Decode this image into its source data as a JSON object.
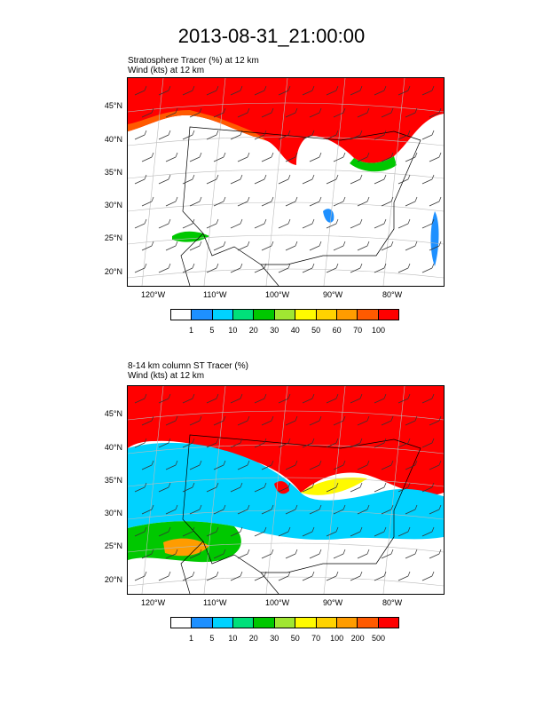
{
  "page_title": "2013-08-31_21:00:00",
  "colors": {
    "palette": [
      "#ffffff",
      "#1e90ff",
      "#00d2ff",
      "#00e07a",
      "#00c800",
      "#a0e632",
      "#fffa00",
      "#ffd200",
      "#ff9c00",
      "#ff5a00",
      "#ff0000"
    ]
  },
  "chart_data": [
    {
      "type": "heatmap",
      "title": "Stratosphere Tracer   (%)     at   12 km",
      "subtitle": "Wind   (kts)     at   12 km",
      "x_tick_labels": [
        "120°W",
        "110°W",
        "100°W",
        "90°W",
        "80°W"
      ],
      "y_tick_labels": [
        "45°N",
        "40°N",
        "35°N",
        "30°N",
        "25°N",
        "20°N"
      ],
      "colorbar_levels": [
        "1",
        "5",
        "10",
        "20",
        "30",
        "40",
        "50",
        "60",
        "70",
        "100"
      ],
      "colorbar_colors": [
        "#ffffff",
        "#1e90ff",
        "#00d2ff",
        "#00e07a",
        "#00c800",
        "#a0e632",
        "#fffa00",
        "#ffd200",
        "#ff9c00",
        "#ff5a00",
        "#ff0000"
      ],
      "regions": [
        {
          "name": "northern high-tracer band",
          "level": ">100",
          "lat_range": [
            40,
            48
          ]
        },
        {
          "name": "southwest patch",
          "level": "5-30",
          "lat_range": [
            24,
            27
          ]
        }
      ],
      "grid": true
    },
    {
      "type": "heatmap",
      "title": "8-14 km column ST Tracer    (%)",
      "subtitle": "Wind   (kts)     at   12 km",
      "x_tick_labels": [
        "120°W",
        "110°W",
        "100°W",
        "90°W",
        "80°W"
      ],
      "y_tick_labels": [
        "45°N",
        "40°N",
        "35°N",
        "30°N",
        "25°N",
        "20°N"
      ],
      "colorbar_levels": [
        "1",
        "5",
        "10",
        "20",
        "30",
        "50",
        "70",
        "100",
        "200",
        "500"
      ],
      "colorbar_colors": [
        "#ffffff",
        "#1e90ff",
        "#00d2ff",
        "#00e07a",
        "#00c800",
        "#a0e632",
        "#fffa00",
        "#ffd200",
        "#ff9c00",
        "#ff5a00",
        "#ff0000"
      ],
      "regions": [
        {
          "name": "northern high-tracer band",
          "level": ">500",
          "lat_range": [
            40,
            48
          ]
        },
        {
          "name": "widespread low-tracer field",
          "level": "1-50",
          "lat_range": [
            20,
            40
          ]
        }
      ],
      "grid": true
    }
  ]
}
